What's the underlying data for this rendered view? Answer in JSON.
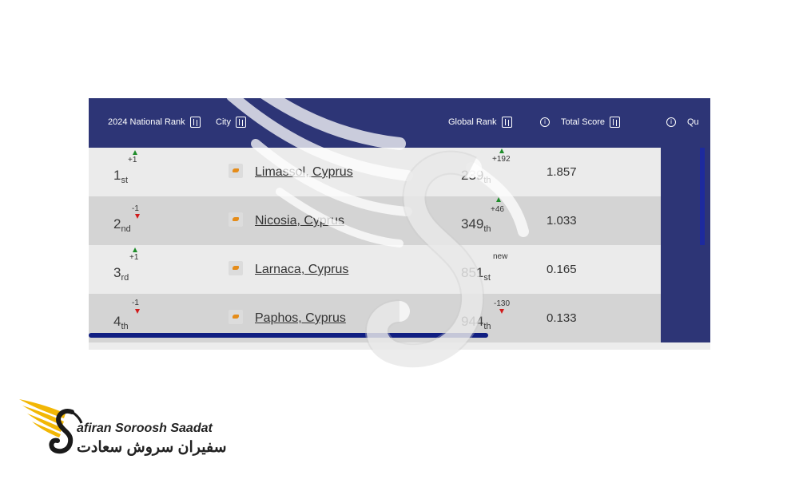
{
  "header": {
    "national_rank": "2024 National Rank",
    "city": "City",
    "global_rank": "Global Rank",
    "total_score": "Total Score",
    "quality": "Qu"
  },
  "rows": [
    {
      "rank": "1",
      "rank_suffix": "st",
      "rank_change": "+1",
      "rank_dir": "up",
      "city": "Limassol, Cyprus",
      "global_rank": "239",
      "global_suffix": "th",
      "global_change": "+192",
      "global_dir": "up",
      "score": "1.857"
    },
    {
      "rank": "2",
      "rank_suffix": "nd",
      "rank_change": "-1",
      "rank_dir": "down",
      "city": "Nicosia, Cyprus",
      "global_rank": "349",
      "global_suffix": "th",
      "global_change": "+46",
      "global_dir": "up",
      "score": "1.033"
    },
    {
      "rank": "3",
      "rank_suffix": "rd",
      "rank_change": "+1",
      "rank_dir": "up",
      "city": "Larnaca, Cyprus",
      "global_rank": "851",
      "global_suffix": "st",
      "global_change": "new",
      "global_dir": "none",
      "score": "0.165"
    },
    {
      "rank": "4",
      "rank_suffix": "th",
      "rank_change": "-1",
      "rank_dir": "down",
      "city": "Paphos, Cyprus",
      "global_rank": "944",
      "global_suffix": "th",
      "global_change": "-130",
      "global_dir": "down",
      "score": "0.133"
    }
  ],
  "icons": {
    "sort": "sort-icon",
    "info": "info-icon",
    "flag": "cyprus-flag-icon"
  },
  "colors": {
    "header_bg": "#2d3576",
    "row_light": "#ebebeb",
    "row_dark": "#d4d4d4",
    "up_arrow": "#1e8c2a",
    "down_arrow": "#d11a1a",
    "scrollbar": "#101e82",
    "logo_gold": "#f2b705"
  },
  "logo": {
    "name_en": "afiran Soroosh Saadat",
    "name_fa": "سفیران سروش سعادت"
  }
}
